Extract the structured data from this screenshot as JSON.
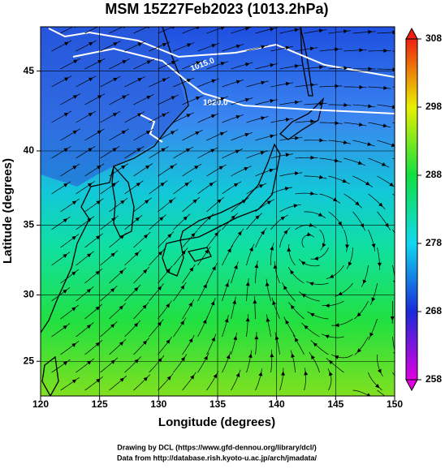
{
  "title": "MSM 15Z27Feb2023 (1013.2hPa)",
  "map": {
    "xlabel": "Longitude (degrees)",
    "ylabel": "Latitude  (degrees)",
    "xlim": [
      120,
      150
    ],
    "ylim": [
      22.3,
      47.6
    ],
    "xticks": [
      120,
      125,
      130,
      135,
      140,
      145,
      150
    ],
    "yticks": [
      25,
      30,
      35,
      40,
      45
    ],
    "contour_labels": [
      "1015.0",
      "1020.0"
    ]
  },
  "colorbar": {
    "lim": [
      258,
      308
    ],
    "ticks": [
      258,
      268,
      278,
      288,
      298,
      308
    ]
  },
  "footer": [
    "Drawing by DCL (https://www.gfd-dennou.org/library/dcl/)",
    "Data from http://database.rish.kyoto-u.ac.jp/arch/jmadata/"
  ]
}
